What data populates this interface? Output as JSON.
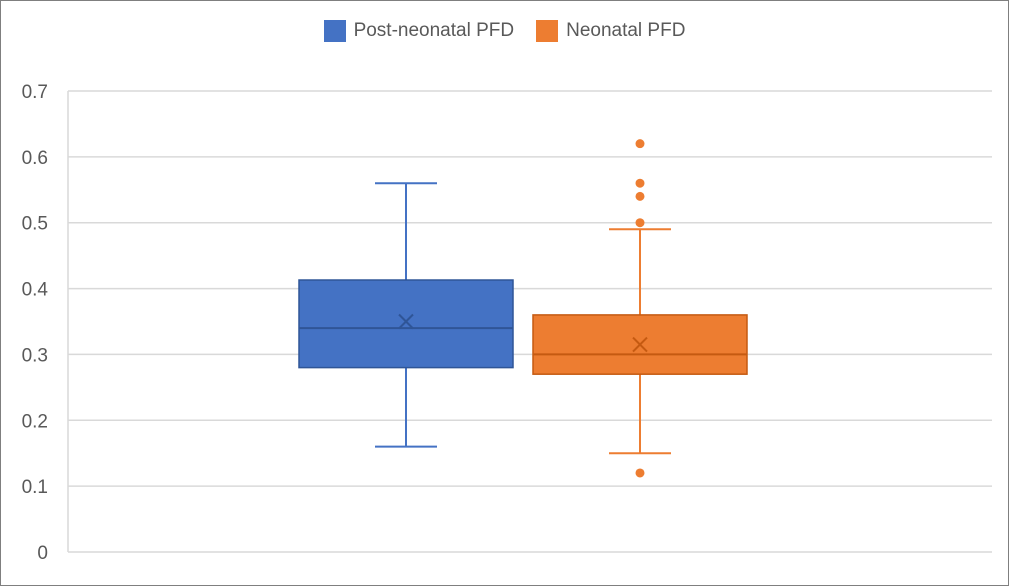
{
  "chart_data": {
    "type": "box",
    "title": "",
    "xlabel": "",
    "ylabel": "",
    "ylim": [
      0,
      0.7
    ],
    "yticks": [
      0,
      0.1,
      0.2,
      0.3,
      0.4,
      0.5,
      0.6,
      0.7
    ],
    "ytick_labels": [
      "0",
      "0.1",
      "0.2",
      "0.3",
      "0.4",
      "0.5",
      "0.6",
      "0.7"
    ],
    "grid": true,
    "legend_position": "top-center",
    "series": [
      {
        "name": "Post-neonatal PFD",
        "color": "#4472c4",
        "min": 0.16,
        "q1": 0.28,
        "median": 0.34,
        "mean": 0.35,
        "q3": 0.413,
        "max": 0.56,
        "outliers": []
      },
      {
        "name": "Neonatal PFD",
        "color": "#ed7d31",
        "min": 0.15,
        "q1": 0.27,
        "median": 0.3,
        "mean": 0.315,
        "q3": 0.36,
        "max": 0.49,
        "outliers": [
          0.12,
          0.5,
          0.54,
          0.56,
          0.62
        ]
      }
    ]
  },
  "colors": {
    "grid": "#d9d9d9",
    "tick_text": "#595959",
    "frame": "#7f7f7f"
  }
}
